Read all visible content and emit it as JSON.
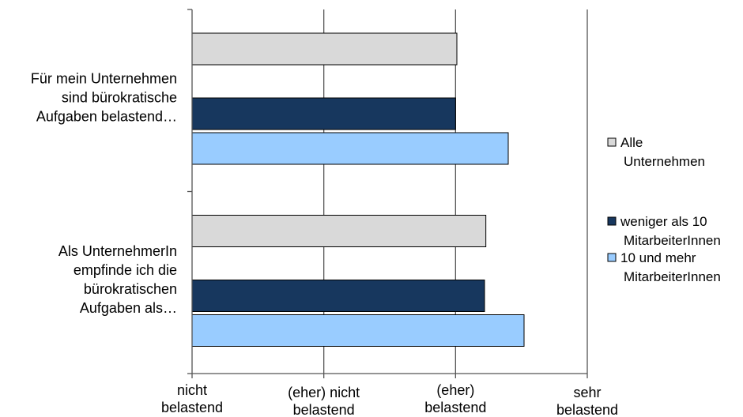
{
  "chart_data": {
    "type": "bar",
    "orientation": "horizontal",
    "categories": [
      [
        "Für mein Unternehmen",
        "sind bürokratische",
        "Aufgaben belastend…"
      ],
      [
        "Als UnternehmerIn",
        "empfinde ich die",
        "bürokratischen",
        "Aufgaben als…"
      ]
    ],
    "series": [
      {
        "name": [
          "Alle",
          "Unternehmen"
        ],
        "color": "#d9d9d9",
        "values": [
          3.01,
          3.23
        ]
      },
      {
        "name": [
          "weniger als 10",
          "MitarbeiterInnen"
        ],
        "color": "#17375e",
        "values": [
          3.0,
          3.22
        ]
      },
      {
        "name": [
          "10 und mehr",
          "MitarbeiterInnen"
        ],
        "color": "#99ccff",
        "values": [
          3.4,
          3.52
        ]
      }
    ],
    "x_ticks": [
      {
        "value": 1,
        "label": [
          "nicht",
          "belastend"
        ]
      },
      {
        "value": 2,
        "label": [
          "(eher) nicht",
          "belastend"
        ]
      },
      {
        "value": 3,
        "label": [
          "(eher)",
          "belastend"
        ]
      },
      {
        "value": 4,
        "label": [
          "sehr",
          "belastend"
        ]
      }
    ],
    "xlim": [
      1,
      4
    ],
    "grid": true,
    "legend_position": "right"
  }
}
